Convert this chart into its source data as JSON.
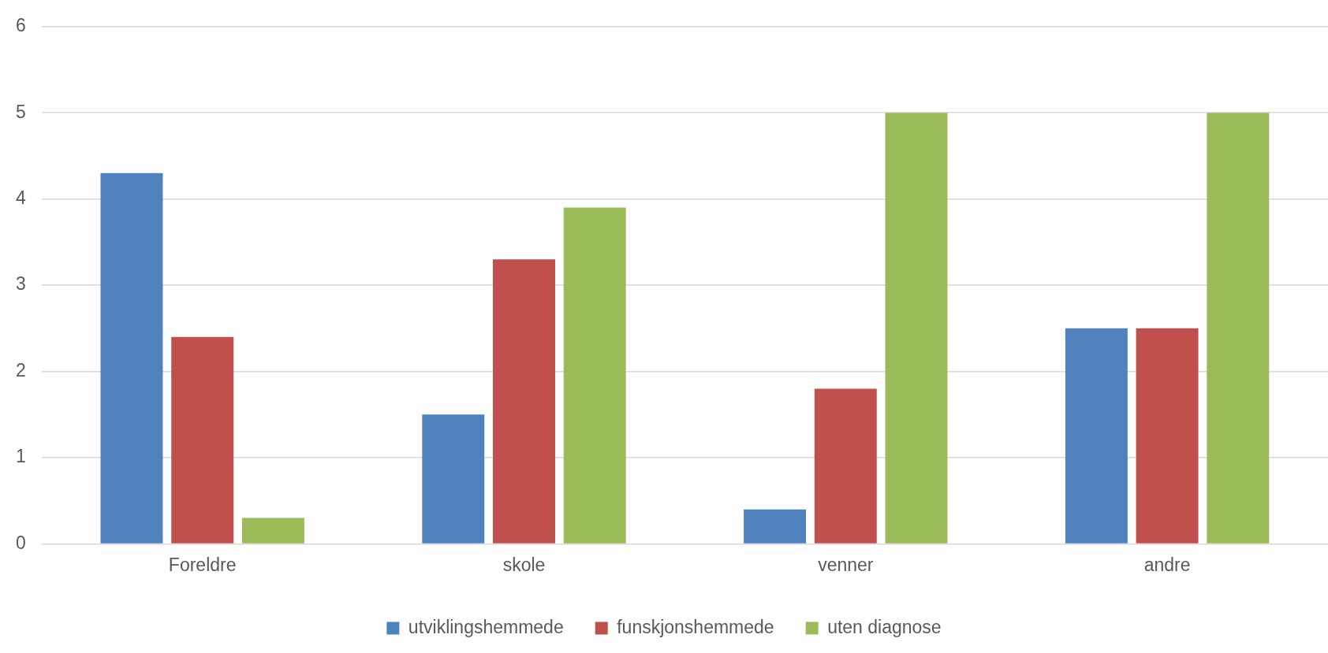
{
  "chart_data": {
    "type": "bar",
    "categories": [
      "Foreldre",
      "skole",
      "venner",
      "andre"
    ],
    "series": [
      {
        "name": "utviklingshemmede",
        "color": "#4f81bd",
        "values": [
          4.3,
          1.5,
          0.4,
          2.5
        ]
      },
      {
        "name": "funskjonshemmede",
        "color": "#c0504d",
        "values": [
          2.4,
          3.3,
          1.8,
          2.5
        ]
      },
      {
        "name": "uten diagnose",
        "color": "#9bbb59",
        "values": [
          0.3,
          3.9,
          5,
          5
        ]
      }
    ],
    "ylim": [
      0,
      6
    ],
    "yticks": [
      0,
      1,
      2,
      3,
      4,
      5,
      6
    ],
    "grid": "y",
    "legend": "bottom"
  }
}
